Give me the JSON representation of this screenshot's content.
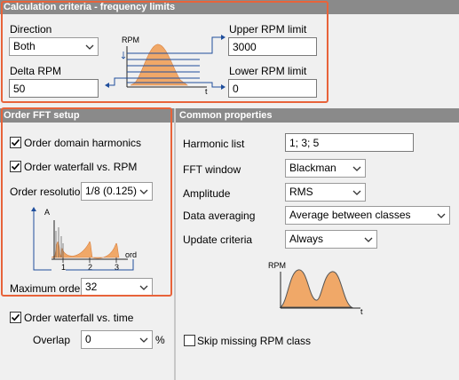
{
  "calc": {
    "header": "Calculation criteria - frequency limits",
    "direction_label": "Direction",
    "direction_value": "Both",
    "delta_rpm_label": "Delta RPM",
    "delta_rpm_value": "50",
    "upper_label": "Upper RPM limit",
    "upper_value": "3000",
    "lower_label": "Lower RPM limit",
    "lower_value": "0",
    "diagram_rpm": "RPM",
    "diagram_t": "t"
  },
  "order": {
    "header": "Order FFT setup",
    "harmonics_label": "Order domain harmonics",
    "harmonics_checked": true,
    "waterfall_rpm_label": "Order waterfall vs. RPM",
    "waterfall_rpm_checked": true,
    "resolution_label": "Order resolution",
    "resolution_value": "1/8 (0.125)",
    "diagram_a": "A",
    "diagram_ord": "ord",
    "diagram_ticks": [
      "1",
      "2",
      "3"
    ],
    "max_order_label": "Maximum order",
    "max_order_value": "32",
    "waterfall_time_label": "Order waterfall vs. time",
    "waterfall_time_checked": true,
    "overlap_label": "Overlap",
    "overlap_value": "0",
    "overlap_unit": "%"
  },
  "common": {
    "header": "Common properties",
    "harmonic_list_label": "Harmonic list",
    "harmonic_list_value": "1; 3; 5",
    "fft_window_label": "FFT window",
    "fft_window_value": "Blackman",
    "amplitude_label": "Amplitude",
    "amplitude_value": "RMS",
    "averaging_label": "Data averaging",
    "averaging_value": "Average between classes",
    "update_label": "Update criteria",
    "update_value": "Always",
    "diagram_rpm": "RPM",
    "diagram_t": "t",
    "skip_label": "Skip missing RPM class",
    "skip_checked": false
  },
  "colors": {
    "highlight": "#e8633a",
    "header_bg": "#8a8a8a",
    "curve_fill": "#f0a868",
    "axis_blue": "#1f4e9c"
  }
}
